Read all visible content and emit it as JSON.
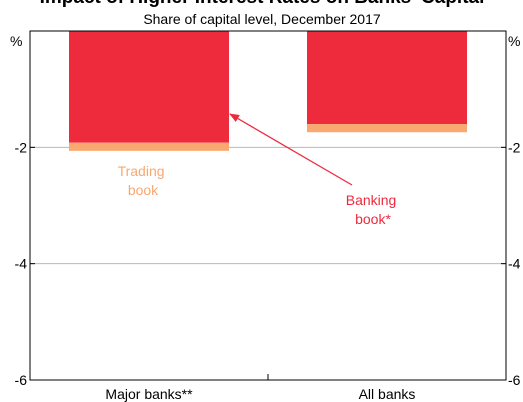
{
  "chart_data": {
    "type": "bar",
    "stacked": true,
    "title": "Impact of Higher Interest Rates on Banks' Capital",
    "subtitle": "Share of capital level, December 2017",
    "ylabel_left": "%",
    "ylabel_right": "%",
    "categories": [
      "Major banks**",
      "All banks"
    ],
    "ylim": [
      -6,
      0
    ],
    "yticks": [
      -6,
      -4,
      -2
    ],
    "ytick_labels": [
      "-6",
      "-4",
      "-2"
    ],
    "grid": true,
    "series": [
      {
        "name": "Banking book*",
        "values": [
          -1.92,
          -1.6
        ],
        "color": "#ee2a3d"
      },
      {
        "name": "Trading book",
        "values": [
          -0.14,
          -0.14
        ],
        "color": "#f9a870"
      }
    ],
    "annotations": [
      {
        "text": [
          "Trading",
          "book"
        ],
        "color": "#f9a870"
      },
      {
        "text": [
          "Banking",
          "book*"
        ],
        "color": "#ee2a3d"
      }
    ]
  }
}
